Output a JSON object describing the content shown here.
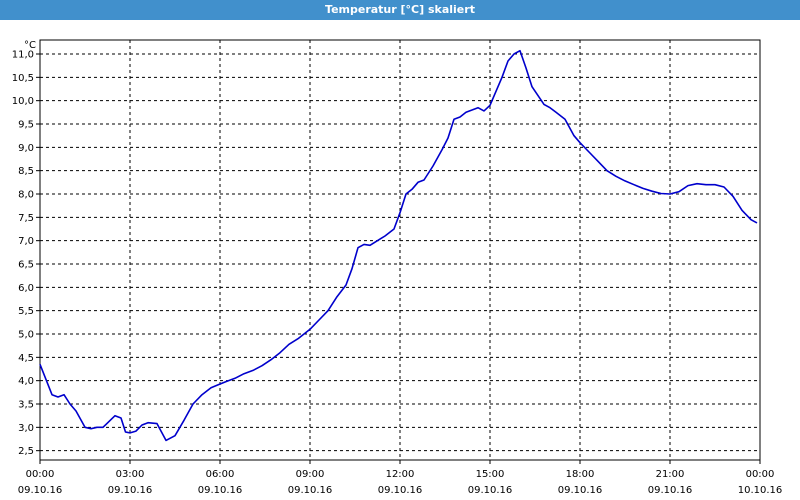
{
  "window": {
    "title": "Temperatur [°C] skaliert"
  },
  "chart_data": {
    "type": "line",
    "title": "Temperatur [°C] skaliert",
    "ylabel": "°C",
    "xlabel": "",
    "ylim": [
      2.3,
      11.3
    ],
    "xlim": [
      0,
      24
    ],
    "grid": true,
    "line_color": "#0000cc",
    "y_ticks": [
      "2,5",
      "3,0",
      "3,5",
      "4,0",
      "4,5",
      "5,0",
      "5,5",
      "6,0",
      "6,5",
      "7,0",
      "7,5",
      "8,0",
      "8,5",
      "9,0",
      "9,5",
      "10,0",
      "10,5",
      "11,0"
    ],
    "x_ticks": [
      {
        "time": "00:00",
        "date": "09.10.16"
      },
      {
        "time": "03:00",
        "date": "09.10.16"
      },
      {
        "time": "06:00",
        "date": "09.10.16"
      },
      {
        "time": "09:00",
        "date": "09.10.16"
      },
      {
        "time": "12:00",
        "date": "09.10.16"
      },
      {
        "time": "15:00",
        "date": "09.10.16"
      },
      {
        "time": "18:00",
        "date": "09.10.16"
      },
      {
        "time": "21:00",
        "date": "09.10.16"
      },
      {
        "time": "00:00",
        "date": "10.10.16"
      }
    ],
    "series": [
      {
        "x": [
          0,
          0.4,
          0.6,
          0.8,
          1.0,
          1.2,
          1.5,
          1.7,
          1.9,
          2.1,
          2.5,
          2.7,
          2.85,
          3.0,
          3.2,
          3.4,
          3.6,
          3.9,
          4.2,
          4.5,
          4.8,
          5.1,
          5.4,
          5.7,
          5.9,
          6.2,
          6.5,
          6.8,
          7.1,
          7.4,
          7.7,
          8.0,
          8.3,
          8.6,
          9.0,
          9.3,
          9.6,
          9.9,
          10.2,
          10.4,
          10.6,
          10.8,
          11.0,
          11.5,
          11.8,
          12.0,
          12.2,
          12.4,
          12.6,
          12.8,
          13.1,
          13.4,
          13.6,
          13.8,
          14.0,
          14.2,
          14.4,
          14.6,
          14.8,
          15.0,
          15.2,
          15.4,
          15.6,
          15.8,
          16.0,
          16.2,
          16.4,
          16.8,
          17.0,
          17.2,
          17.5,
          17.8,
          18.0,
          18.3,
          18.6,
          18.9,
          19.2,
          19.5,
          19.8,
          20.1,
          20.4,
          20.7,
          21.0,
          21.3,
          21.6,
          21.9,
          22.2,
          22.5,
          22.8,
          23.1,
          23.4,
          23.7,
          23.9
        ],
        "y": [
          4.35,
          3.7,
          3.65,
          3.7,
          3.5,
          3.35,
          3.0,
          2.97,
          3.0,
          3.0,
          3.25,
          3.2,
          2.9,
          2.88,
          2.92,
          3.05,
          3.1,
          3.08,
          2.72,
          2.82,
          3.15,
          3.5,
          3.7,
          3.85,
          3.9,
          3.98,
          4.05,
          4.15,
          4.22,
          4.32,
          4.45,
          4.6,
          4.78,
          4.9,
          5.1,
          5.3,
          5.5,
          5.8,
          6.05,
          6.4,
          6.85,
          6.92,
          6.9,
          7.1,
          7.25,
          7.6,
          8.0,
          8.1,
          8.25,
          8.3,
          8.6,
          8.95,
          9.2,
          9.6,
          9.65,
          9.75,
          9.8,
          9.85,
          9.78,
          9.9,
          10.2,
          10.5,
          10.85,
          11.0,
          11.07,
          10.7,
          10.3,
          9.92,
          9.85,
          9.75,
          9.6,
          9.25,
          9.1,
          8.9,
          8.7,
          8.5,
          8.38,
          8.28,
          8.2,
          8.12,
          8.06,
          8.01,
          8.0,
          8.05,
          8.18,
          8.22,
          8.2,
          8.2,
          8.15,
          7.95,
          7.65,
          7.45,
          7.38
        ]
      }
    ]
  }
}
